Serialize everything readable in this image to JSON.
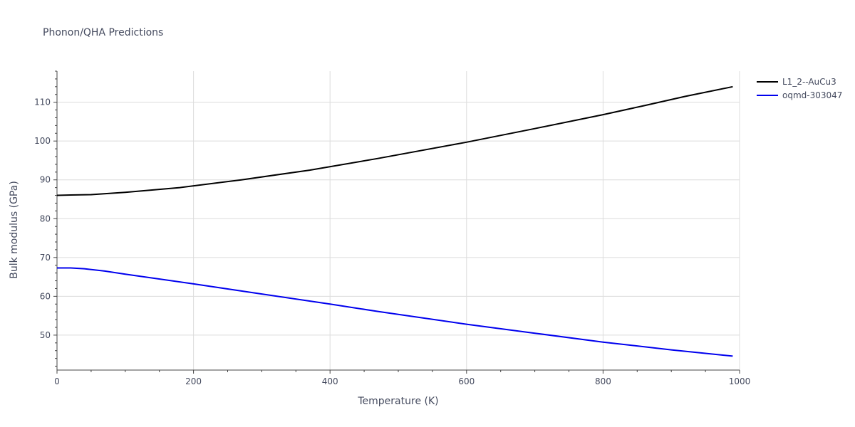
{
  "chart_data": {
    "type": "line",
    "title": "Phonon/QHA Predictions",
    "xlabel": "Temperature (K)",
    "ylabel": "Bulk modulus (GPa)",
    "xlim": [
      0,
      1000
    ],
    "ylim": [
      41,
      118
    ],
    "xticks": [
      0,
      200,
      400,
      600,
      800,
      1000
    ],
    "yticks": [
      50,
      60,
      70,
      80,
      90,
      100,
      110
    ],
    "grid": true,
    "legend_position": "top-right",
    "series": [
      {
        "name": "L1_2--AuCu3",
        "color": "#000000",
        "x": [
          0,
          20,
          50,
          100,
          180,
          270,
          370,
          470,
          600,
          700,
          800,
          860,
          920,
          990
        ],
        "y": [
          86.0,
          86.1,
          86.2,
          86.8,
          88.0,
          90.0,
          92.5,
          95.5,
          99.7,
          103.2,
          106.8,
          109.1,
          111.5,
          114.0
        ]
      },
      {
        "name": "oqmd-303047",
        "color": "#0000ee",
        "x": [
          0,
          20,
          40,
          70,
          100,
          200,
          300,
          400,
          470,
          600,
          700,
          800,
          900,
          990
        ],
        "y": [
          67.3,
          67.3,
          67.1,
          66.5,
          65.7,
          63.2,
          60.6,
          58.0,
          56.1,
          52.8,
          50.5,
          48.2,
          46.2,
          44.6
        ]
      }
    ]
  }
}
